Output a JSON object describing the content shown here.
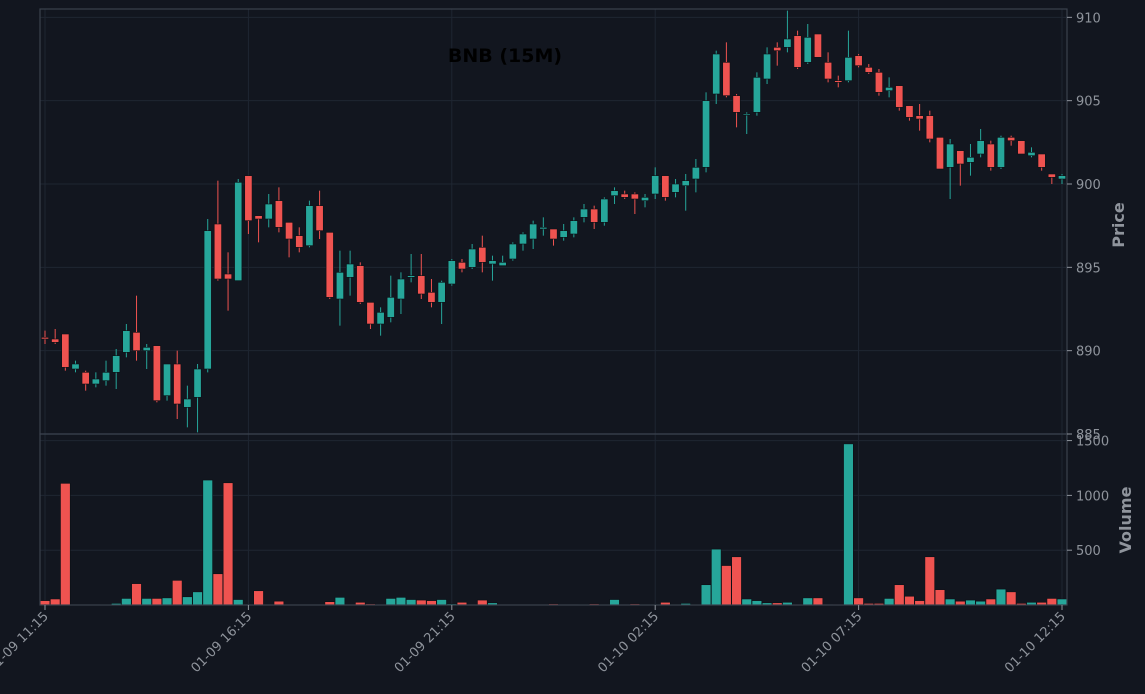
{
  "chart_data": [
    {
      "type": "candlestick",
      "title": "BNB (15M)",
      "ylabel": "Price",
      "ylim": [
        885,
        910.5
      ],
      "yticks": [
        885,
        890,
        895,
        900,
        905,
        910
      ],
      "grid": true,
      "x_interval_minutes": 15,
      "xticks": [
        {
          "index": 0,
          "label": "01-09 11:15"
        },
        {
          "index": 20,
          "label": "01-09 16:15"
        },
        {
          "index": 40,
          "label": "01-09 21:15"
        },
        {
          "index": 60,
          "label": "01-10 02:15"
        },
        {
          "index": 80,
          "label": "01-10 07:15"
        },
        {
          "index": 100,
          "label": "01-10 12:15"
        }
      ],
      "ohlc": [
        [
          890.8,
          891.2,
          890.4,
          890.7
        ],
        [
          890.7,
          891.3,
          890.4,
          890.5
        ],
        [
          891.0,
          891.0,
          888.8,
          889.0
        ],
        [
          888.9,
          889.4,
          888.7,
          889.2
        ],
        [
          888.7,
          888.8,
          887.6,
          888.0
        ],
        [
          888.0,
          888.7,
          887.8,
          888.3
        ],
        [
          888.2,
          889.4,
          887.9,
          888.7
        ],
        [
          888.7,
          890.1,
          887.7,
          889.7
        ],
        [
          889.9,
          891.6,
          889.6,
          891.2
        ],
        [
          891.1,
          893.3,
          889.4,
          890.0
        ],
        [
          890.0,
          890.4,
          888.9,
          890.2
        ],
        [
          890.3,
          890.3,
          886.9,
          887.0
        ],
        [
          887.3,
          889.2,
          887.0,
          889.2
        ],
        [
          889.2,
          890.0,
          885.9,
          886.8
        ],
        [
          886.6,
          887.9,
          885.4,
          887.1
        ],
        [
          887.2,
          889.2,
          885.1,
          888.9
        ],
        [
          888.9,
          897.9,
          888.7,
          897.2
        ],
        [
          897.6,
          900.2,
          894.2,
          894.3
        ],
        [
          894.6,
          895.9,
          892.4,
          894.3
        ],
        [
          894.2,
          900.3,
          894.2,
          900.1
        ],
        [
          900.5,
          900.5,
          897.0,
          897.8
        ],
        [
          898.1,
          898.1,
          896.5,
          897.9
        ],
        [
          897.9,
          899.4,
          897.4,
          898.8
        ],
        [
          899.0,
          899.8,
          897.1,
          897.4
        ],
        [
          897.7,
          897.7,
          895.6,
          896.7
        ],
        [
          896.9,
          897.4,
          895.9,
          896.2
        ],
        [
          896.3,
          899.0,
          896.2,
          898.7
        ],
        [
          898.7,
          899.6,
          896.7,
          897.2
        ],
        [
          897.1,
          897.1,
          893.1,
          893.2
        ],
        [
          893.1,
          896.0,
          891.5,
          894.7
        ],
        [
          894.4,
          896.0,
          893.3,
          895.2
        ],
        [
          895.1,
          895.3,
          892.8,
          892.9
        ],
        [
          892.9,
          892.9,
          891.3,
          891.6
        ],
        [
          891.6,
          892.6,
          890.9,
          892.3
        ],
        [
          892.0,
          894.5,
          891.7,
          893.2
        ],
        [
          893.1,
          894.7,
          892.2,
          894.3
        ],
        [
          894.4,
          895.8,
          894.1,
          894.5
        ],
        [
          894.5,
          895.8,
          893.1,
          893.4
        ],
        [
          893.5,
          894.3,
          892.6,
          892.9
        ],
        [
          892.9,
          894.2,
          891.6,
          894.1
        ],
        [
          894.0,
          895.5,
          893.9,
          895.4
        ],
        [
          895.3,
          895.5,
          894.7,
          894.9
        ],
        [
          895.0,
          896.4,
          894.9,
          896.1
        ],
        [
          896.2,
          896.9,
          894.7,
          895.3
        ],
        [
          895.2,
          895.7,
          894.2,
          895.4
        ],
        [
          895.1,
          895.7,
          895.1,
          895.3
        ],
        [
          895.5,
          896.5,
          895.4,
          896.4
        ],
        [
          896.4,
          897.1,
          896.0,
          897.0
        ],
        [
          896.7,
          897.8,
          896.1,
          897.6
        ],
        [
          897.3,
          898.0,
          896.9,
          897.4
        ],
        [
          897.3,
          897.3,
          896.3,
          896.7
        ],
        [
          896.8,
          897.6,
          896.6,
          897.2
        ],
        [
          897.0,
          898.0,
          896.8,
          897.8
        ],
        [
          898.0,
          898.8,
          897.7,
          898.5
        ],
        [
          898.5,
          898.7,
          897.3,
          897.7
        ],
        [
          897.7,
          899.2,
          897.5,
          899.1
        ],
        [
          899.3,
          899.8,
          898.8,
          899.6
        ],
        [
          899.4,
          899.6,
          899.1,
          899.2
        ],
        [
          899.4,
          899.5,
          898.2,
          899.1
        ],
        [
          899.0,
          899.4,
          898.6,
          899.2
        ],
        [
          899.4,
          901.0,
          899.1,
          900.5
        ],
        [
          900.5,
          900.5,
          899.0,
          899.2
        ],
        [
          899.5,
          900.3,
          899.2,
          900.0
        ],
        [
          899.9,
          900.6,
          898.4,
          900.2
        ],
        [
          900.3,
          901.5,
          899.5,
          901.0
        ],
        [
          901.0,
          905.5,
          900.7,
          905.0
        ],
        [
          905.4,
          908.0,
          904.8,
          907.8
        ],
        [
          907.3,
          908.5,
          905.2,
          905.3
        ],
        [
          905.3,
          905.4,
          903.4,
          904.3
        ],
        [
          904.2,
          904.3,
          903.0,
          904.2
        ],
        [
          904.3,
          906.7,
          904.1,
          906.4
        ],
        [
          906.3,
          908.2,
          906.0,
          907.8
        ],
        [
          908.2,
          908.5,
          907.1,
          908.0
        ],
        [
          908.2,
          910.4,
          907.9,
          908.7
        ],
        [
          908.9,
          909.2,
          906.9,
          907.0
        ],
        [
          907.3,
          909.6,
          907.2,
          908.8
        ],
        [
          909.0,
          909.0,
          907.7,
          907.6
        ],
        [
          907.3,
          907.9,
          906.1,
          906.3
        ],
        [
          906.2,
          906.5,
          905.8,
          906.1
        ],
        [
          906.2,
          909.2,
          906.1,
          907.6
        ],
        [
          907.7,
          907.8,
          907.0,
          907.1
        ],
        [
          907.0,
          907.2,
          906.6,
          906.7
        ],
        [
          906.7,
          906.9,
          905.3,
          905.5
        ],
        [
          905.6,
          906.4,
          905.2,
          905.8
        ],
        [
          905.9,
          905.9,
          904.4,
          904.6
        ],
        [
          904.7,
          904.7,
          903.8,
          904.0
        ],
        [
          904.1,
          904.8,
          903.2,
          903.9
        ],
        [
          904.1,
          904.4,
          902.5,
          902.7
        ],
        [
          902.8,
          902.8,
          900.9,
          900.9
        ],
        [
          901.0,
          902.7,
          899.1,
          902.4
        ],
        [
          902.0,
          902.0,
          899.9,
          901.2
        ],
        [
          901.3,
          902.4,
          900.5,
          901.6
        ],
        [
          901.8,
          903.3,
          901.6,
          902.6
        ],
        [
          902.4,
          902.6,
          900.8,
          901.0
        ],
        [
          901.0,
          902.9,
          900.9,
          902.8
        ],
        [
          902.8,
          902.9,
          902.3,
          902.6
        ],
        [
          902.6,
          902.6,
          901.8,
          901.8
        ],
        [
          901.7,
          902.2,
          901.6,
          901.9
        ],
        [
          901.8,
          901.8,
          900.8,
          901.0
        ],
        [
          900.6,
          900.6,
          900.0,
          900.4
        ],
        [
          900.3,
          900.6,
          900.0,
          900.5
        ]
      ]
    },
    {
      "type": "bar",
      "ylabel": "Volume",
      "ylim": [
        0,
        1560
      ],
      "yticks": [
        500,
        1000,
        1500
      ],
      "grid": true,
      "values": [
        40,
        55,
        1110,
        0,
        0,
        0,
        5,
        15,
        60,
        195,
        60,
        60,
        65,
        225,
        75,
        120,
        1140,
        285,
        1115,
        50,
        0,
        130,
        0,
        35,
        0,
        0,
        0,
        0,
        30,
        70,
        0,
        25,
        10,
        0,
        60,
        70,
        50,
        45,
        40,
        50,
        10,
        25,
        0,
        45,
        20,
        0,
        0,
        0,
        0,
        0,
        10,
        0,
        0,
        5,
        10,
        5,
        50,
        0,
        10,
        5,
        5,
        25,
        5,
        15,
        5,
        185,
        510,
        360,
        440,
        55,
        40,
        20,
        20,
        25,
        5,
        65,
        65,
        0,
        5,
        1470,
        65,
        15,
        15,
        60,
        185,
        80,
        40,
        440,
        140,
        55,
        35,
        45,
        35,
        55,
        145,
        120,
        15,
        25,
        25,
        60,
        55
      ]
    }
  ],
  "colors": {
    "up": "#26a69a",
    "down": "#ef5350",
    "background": "#12161f",
    "grid": "#1f2632",
    "axis": "#3a414d",
    "tick": "#8f949c",
    "title": "#000000"
  }
}
